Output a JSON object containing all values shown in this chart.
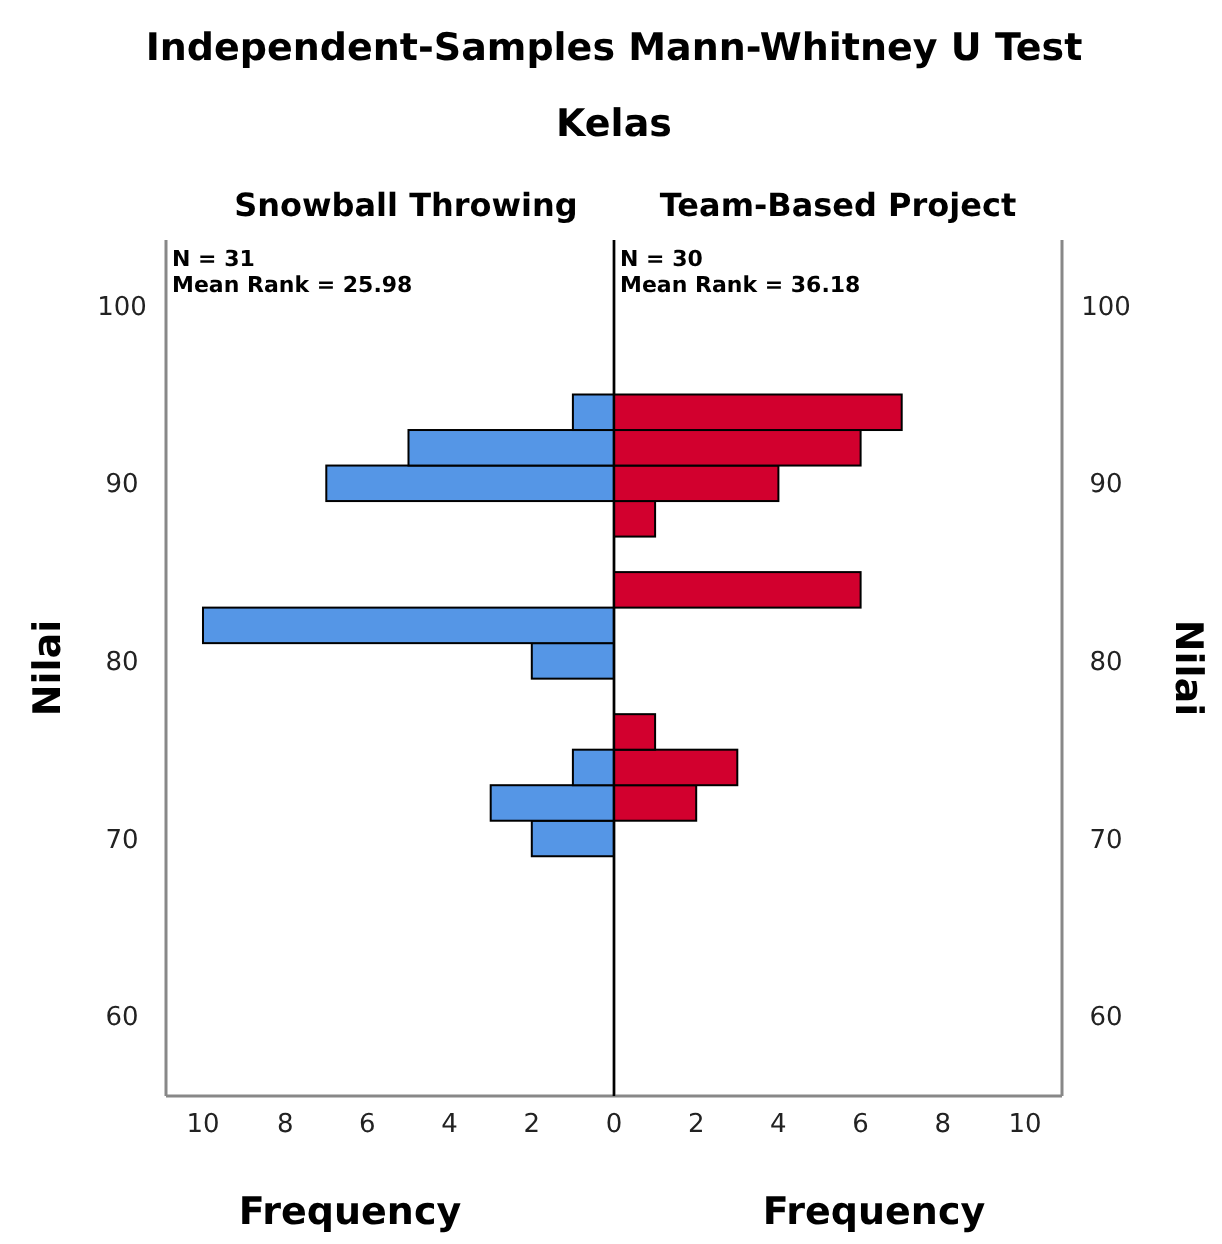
{
  "chart_data": [
    {
      "type": "histogram",
      "orientation": "horizontal",
      "title": "Independent-Samples Mann-Whitney U Test",
      "subtitle": "Kelas",
      "ylabel": "Nilai",
      "xlabel": "Frequency",
      "bins": [
        69,
        71,
        73,
        75,
        77,
        79,
        81,
        83,
        85,
        87,
        89,
        91,
        93,
        95
      ],
      "series": [
        {
          "name": "Snowball Throwing",
          "color": "#5596e6",
          "values": [
            2,
            3,
            1,
            0,
            0,
            2,
            10,
            0,
            0,
            0,
            7,
            5,
            1
          ]
        }
      ],
      "annotations": [
        "N = 31",
        "Mean Rank = 25.98"
      ],
      "xlim": [
        10.9,
        0
      ],
      "xticks": [
        10,
        8,
        6,
        4,
        2
      ],
      "ylim": [
        55.5,
        103.7
      ],
      "yticks": [
        60,
        70,
        80,
        90,
        100
      ],
      "grid": false
    },
    {
      "type": "histogram",
      "orientation": "horizontal",
      "ylabel": "Nilai",
      "xlabel": "Frequency",
      "bins": [
        69,
        71,
        73,
        75,
        77,
        79,
        81,
        83,
        85,
        87,
        89,
        91,
        93,
        95
      ],
      "series": [
        {
          "name": "Team-Based Project",
          "color": "#d2002e",
          "values": [
            0,
            2,
            3,
            1,
            0,
            0,
            0,
            6,
            0,
            1,
            4,
            6,
            7
          ]
        }
      ],
      "annotations": [
        "N = 30",
        "Mean Rank = 36.18"
      ],
      "xlim": [
        0,
        10.9
      ],
      "xticks": [
        0,
        2,
        4,
        6,
        8,
        10
      ],
      "ylim": [
        55.5,
        103.7
      ],
      "yticks": [
        60,
        70,
        80,
        90,
        100
      ],
      "grid": false
    }
  ]
}
